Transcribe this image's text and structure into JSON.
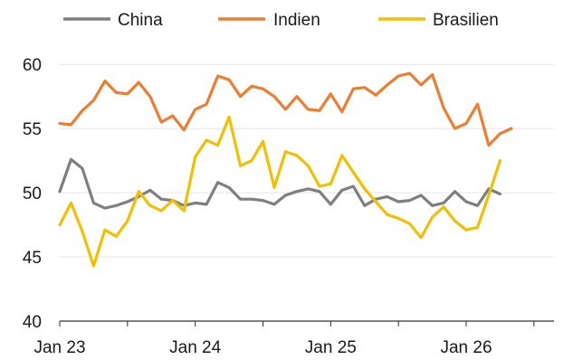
{
  "chart_data": {
    "type": "line",
    "title": "",
    "xlabel": "",
    "ylabel": "",
    "ylim": [
      40,
      61
    ],
    "y_ticks": [
      "40",
      "45",
      "50",
      "55",
      "60"
    ],
    "x_ticks": [
      {
        "label": "Jan 23",
        "date": "2023-01"
      },
      {
        "label": "Jan 24",
        "date": "2024-01"
      },
      {
        "label": "Jan 25",
        "date": "2025-01"
      },
      {
        "label": "Jan 26",
        "date": "2026-01"
      }
    ],
    "grid": "horizontal",
    "legend_position": "top",
    "series": [
      {
        "name": "China",
        "color": "#7f7f7f",
        "x": [
          "2023-01",
          "2023-02",
          "2023-03",
          "2023-04",
          "2023-05",
          "2023-06",
          "2023-07",
          "2023-08",
          "2023-09",
          "2023-10",
          "2023-11",
          "2023-12",
          "2024-01",
          "2024-02",
          "2024-03",
          "2024-04",
          "2024-05",
          "2024-06",
          "2024-07",
          "2024-08",
          "2024-09",
          "2024-10",
          "2024-11",
          "2024-12",
          "2025-01",
          "2025-02",
          "2025-03",
          "2025-04",
          "2025-05",
          "2025-06",
          "2025-07",
          "2025-08",
          "2025-09",
          "2025-10",
          "2025-11",
          "2025-12",
          "2026-01",
          "2026-02",
          "2026-03",
          "2026-04"
        ],
        "values": [
          50.1,
          52.6,
          51.9,
          49.2,
          48.8,
          49.0,
          49.3,
          49.7,
          50.2,
          49.5,
          49.4,
          49.0,
          49.2,
          49.1,
          50.8,
          50.4,
          49.5,
          49.5,
          49.4,
          49.1,
          49.8,
          50.1,
          50.3,
          50.1,
          49.1,
          50.2,
          50.5,
          49.0,
          49.5,
          49.7,
          49.3,
          49.4,
          49.8,
          49.0,
          49.2,
          50.1,
          49.3,
          49.0,
          50.3,
          49.9
        ],
        "labels_in_json_only": false
      },
      {
        "name": "Indien",
        "color": "#ed7d31",
        "x": [
          "2023-01",
          "2023-02",
          "2023-03",
          "2023-04",
          "2023-05",
          "2023-06",
          "2023-07",
          "2023-08",
          "2023-09",
          "2023-10",
          "2023-11",
          "2023-12",
          "2024-01",
          "2024-02",
          "2024-03",
          "2024-04",
          "2024-05",
          "2024-06",
          "2024-07",
          "2024-08",
          "2024-09",
          "2024-10",
          "2024-11",
          "2024-12",
          "2025-01",
          "2025-02",
          "2025-03",
          "2025-04",
          "2025-05",
          "2025-06",
          "2025-07",
          "2025-08",
          "2025-09",
          "2025-10",
          "2025-11",
          "2025-12",
          "2026-01",
          "2026-02",
          "2026-03",
          "2026-04",
          "2026-05"
        ],
        "values": [
          55.4,
          55.3,
          56.4,
          57.2,
          58.7,
          57.8,
          57.7,
          58.6,
          57.5,
          55.5,
          56.0,
          54.9,
          56.5,
          56.9,
          59.1,
          58.8,
          57.5,
          58.3,
          58.1,
          57.5,
          56.5,
          57.5,
          56.5,
          56.4,
          57.7,
          56.3,
          58.1,
          58.2,
          57.6,
          58.4,
          59.1,
          59.3,
          58.4,
          59.2,
          56.6,
          55.0,
          55.4,
          56.9,
          53.7,
          54.6,
          55.0
        ],
        "labels_in_json_only": false
      },
      {
        "name": "Brasilien",
        "color": "#f2c000",
        "x": [
          "2023-01",
          "2023-02",
          "2023-03",
          "2023-04",
          "2023-05",
          "2023-06",
          "2023-07",
          "2023-08",
          "2023-09",
          "2023-10",
          "2023-11",
          "2023-12",
          "2024-01",
          "2024-02",
          "2024-03",
          "2024-04",
          "2024-05",
          "2024-06",
          "2024-07",
          "2024-08",
          "2024-09",
          "2024-10",
          "2024-11",
          "2024-12",
          "2025-01",
          "2025-02",
          "2025-03",
          "2025-04",
          "2025-05",
          "2025-06",
          "2025-07",
          "2025-08",
          "2025-09",
          "2025-10",
          "2025-11",
          "2025-12",
          "2026-01",
          "2026-02",
          "2026-03",
          "2026-04"
        ],
        "values": [
          47.5,
          49.2,
          47.0,
          44.3,
          47.1,
          46.6,
          47.8,
          50.1,
          49.0,
          48.6,
          49.4,
          48.6,
          52.8,
          54.1,
          53.7,
          55.9,
          52.1,
          52.5,
          54.0,
          50.4,
          53.2,
          52.9,
          52.1,
          50.5,
          50.7,
          52.9,
          51.6,
          50.3,
          49.3,
          48.3,
          48.0,
          47.6,
          46.5,
          48.1,
          48.9,
          47.8,
          47.1,
          47.3,
          49.8,
          52.5
        ],
        "labels_in_json_only": false
      }
    ]
  }
}
